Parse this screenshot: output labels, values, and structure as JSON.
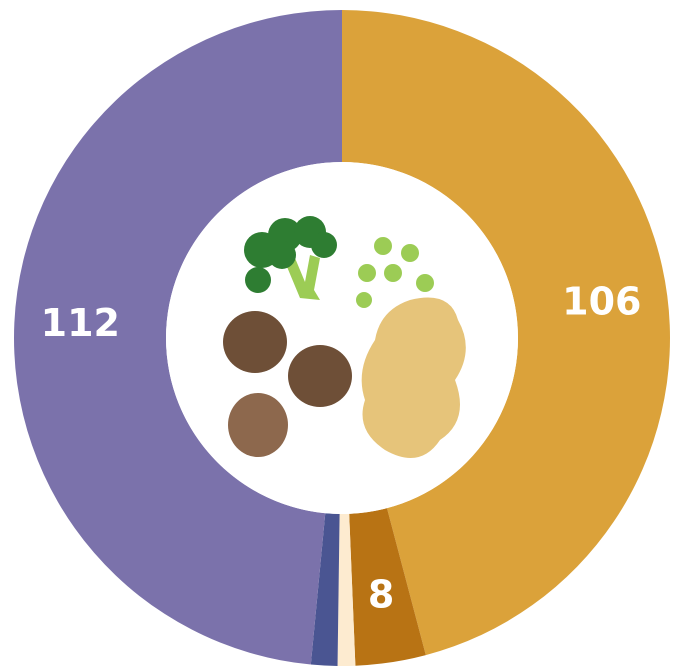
{
  "chart_data": {
    "type": "pie",
    "values": [
      106,
      8,
      2,
      3,
      112
    ],
    "colors": [
      "#dba23a",
      "#b87314",
      "#fdebd0",
      "#4a5592",
      "#7b72ab"
    ],
    "labeled": [
      true,
      true,
      false,
      false,
      true
    ]
  }
}
